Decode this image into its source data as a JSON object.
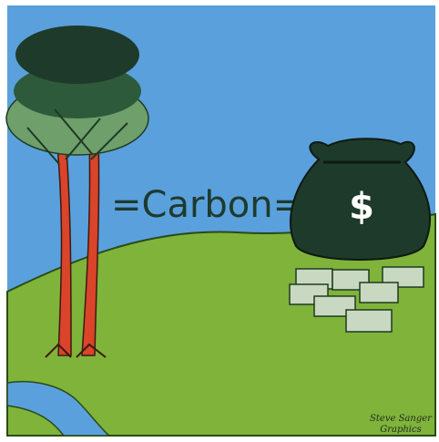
{
  "caption": "=Carbon=",
  "bag_symbol": "$",
  "signature": [
    "Steve Sanger",
    "Graphics"
  ]
}
